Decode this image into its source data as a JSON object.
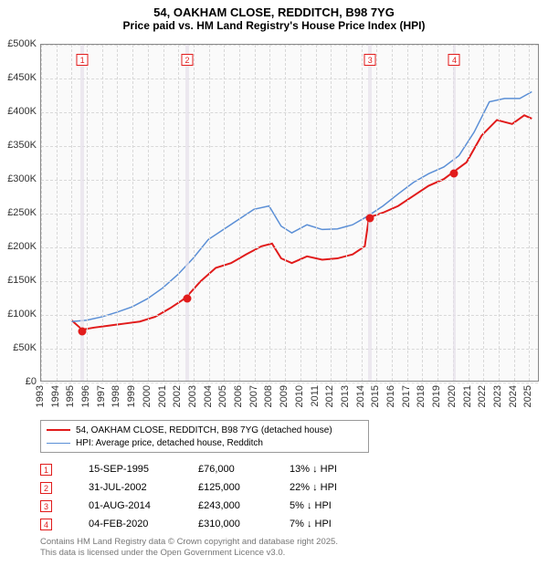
{
  "title_line1": "54, OAKHAM CLOSE, REDDITCH, B98 7YG",
  "title_line2": "Price paid vs. HM Land Registry's House Price Index (HPI)",
  "chart": {
    "type": "line",
    "background_color": "#fafafa",
    "grid_color": "#d8d8d8",
    "border_color": "#888888",
    "x_min": 1993,
    "x_max": 2025.7,
    "xticks": [
      1993,
      1994,
      1995,
      1996,
      1997,
      1998,
      1999,
      2000,
      2001,
      2002,
      2003,
      2004,
      2005,
      2006,
      2007,
      2008,
      2009,
      2010,
      2011,
      2012,
      2013,
      2014,
      2015,
      2016,
      2017,
      2018,
      2019,
      2020,
      2021,
      2022,
      2023,
      2024,
      2025
    ],
    "y_min": 0,
    "y_max": 500000,
    "ytick_step": 50000,
    "yticks": [
      0,
      50000,
      100000,
      150000,
      200000,
      250000,
      300000,
      350000,
      400000,
      450000,
      500000
    ],
    "ytick_prefix": "£",
    "ytick_suffix": "K",
    "label_fontsize": 11,
    "series": [
      {
        "name": "price_paid",
        "label": "54, OAKHAM CLOSE, REDDITCH, B98 7YG (detached house)",
        "color": "#e11b1b",
        "line_width": 2,
        "data": [
          [
            1995.0,
            90000
          ],
          [
            1995.7,
            76000
          ],
          [
            1996.5,
            79000
          ],
          [
            1997.5,
            82000
          ],
          [
            1998.5,
            85000
          ],
          [
            1999.5,
            88000
          ],
          [
            2000.5,
            95000
          ],
          [
            2001.5,
            108000
          ],
          [
            2002.3,
            120000
          ],
          [
            2002.58,
            125000
          ],
          [
            2003.5,
            148000
          ],
          [
            2004.5,
            168000
          ],
          [
            2005.5,
            175000
          ],
          [
            2006.5,
            188000
          ],
          [
            2007.5,
            200000
          ],
          [
            2008.2,
            204000
          ],
          [
            2008.8,
            182000
          ],
          [
            2009.5,
            175000
          ],
          [
            2010.5,
            185000
          ],
          [
            2011.5,
            180000
          ],
          [
            2012.5,
            182000
          ],
          [
            2013.5,
            188000
          ],
          [
            2014.3,
            200000
          ],
          [
            2014.58,
            243000
          ],
          [
            2015.5,
            250000
          ],
          [
            2016.5,
            260000
          ],
          [
            2017.5,
            275000
          ],
          [
            2018.5,
            290000
          ],
          [
            2019.5,
            300000
          ],
          [
            2020.1,
            310000
          ],
          [
            2021.0,
            325000
          ],
          [
            2022.0,
            365000
          ],
          [
            2023.0,
            388000
          ],
          [
            2024.0,
            382000
          ],
          [
            2024.8,
            395000
          ],
          [
            2025.3,
            390000
          ]
        ]
      },
      {
        "name": "hpi",
        "label": "HPI: Average price, detached house, Redditch",
        "color": "#5b8fd6",
        "line_width": 1.5,
        "data": [
          [
            1995.0,
            88000
          ],
          [
            1996.0,
            90000
          ],
          [
            1997.0,
            95000
          ],
          [
            1998.0,
            102000
          ],
          [
            1999.0,
            110000
          ],
          [
            2000.0,
            122000
          ],
          [
            2001.0,
            138000
          ],
          [
            2002.0,
            158000
          ],
          [
            2003.0,
            182000
          ],
          [
            2004.0,
            210000
          ],
          [
            2005.0,
            225000
          ],
          [
            2006.0,
            240000
          ],
          [
            2007.0,
            255000
          ],
          [
            2008.0,
            260000
          ],
          [
            2008.8,
            230000
          ],
          [
            2009.5,
            220000
          ],
          [
            2010.5,
            232000
          ],
          [
            2011.5,
            225000
          ],
          [
            2012.5,
            226000
          ],
          [
            2013.5,
            232000
          ],
          [
            2014.5,
            245000
          ],
          [
            2015.5,
            260000
          ],
          [
            2016.5,
            278000
          ],
          [
            2017.5,
            295000
          ],
          [
            2018.5,
            308000
          ],
          [
            2019.5,
            318000
          ],
          [
            2020.5,
            335000
          ],
          [
            2021.5,
            370000
          ],
          [
            2022.5,
            415000
          ],
          [
            2023.5,
            420000
          ],
          [
            2024.5,
            420000
          ],
          [
            2025.3,
            430000
          ]
        ]
      }
    ],
    "sale_points": {
      "color": "#e11b1b",
      "radius": 4.5,
      "points": [
        [
          1995.7,
          76000
        ],
        [
          2002.58,
          125000
        ],
        [
          2014.58,
          243000
        ],
        [
          2020.1,
          310000
        ]
      ]
    },
    "event_band_color": "#e6e0ea",
    "event_band_width_years": 0.22,
    "events": [
      {
        "n": 1,
        "x": 1995.7,
        "color": "#e11b1b"
      },
      {
        "n": 2,
        "x": 2002.58,
        "color": "#e11b1b"
      },
      {
        "n": 3,
        "x": 2014.58,
        "color": "#e11b1b"
      },
      {
        "n": 4,
        "x": 2020.1,
        "color": "#e11b1b"
      }
    ]
  },
  "legend": {
    "border_color": "#999999",
    "rows": [
      {
        "color": "#e11b1b",
        "width": 2,
        "label": "54, OAKHAM CLOSE, REDDITCH, B98 7YG (detached house)"
      },
      {
        "color": "#5b8fd6",
        "width": 1.5,
        "label": "HPI: Average price, detached house, Redditch"
      }
    ]
  },
  "events_table": [
    {
      "n": 1,
      "color": "#e11b1b",
      "date": "15-SEP-1995",
      "price": "£76,000",
      "diff": "13% ↓ HPI"
    },
    {
      "n": 2,
      "color": "#e11b1b",
      "date": "31-JUL-2002",
      "price": "£125,000",
      "diff": "22% ↓ HPI"
    },
    {
      "n": 3,
      "color": "#e11b1b",
      "date": "01-AUG-2014",
      "price": "£243,000",
      "diff": "5% ↓ HPI"
    },
    {
      "n": 4,
      "color": "#e11b1b",
      "date": "04-FEB-2020",
      "price": "£310,000",
      "diff": "7% ↓ HPI"
    }
  ],
  "footer_line1": "Contains HM Land Registry data © Crown copyright and database right 2025.",
  "footer_line2": "This data is licensed under the Open Government Licence v3.0."
}
